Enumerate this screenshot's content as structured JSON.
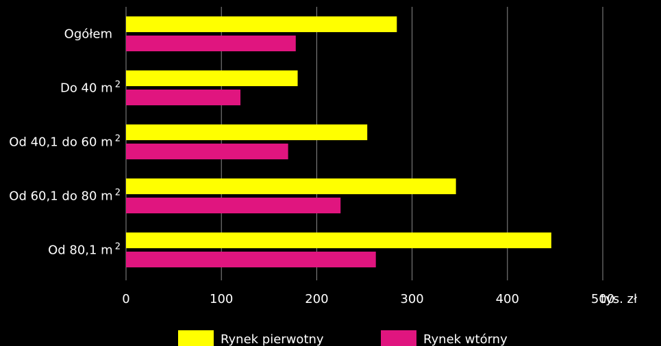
{
  "chart_data": {
    "type": "bar",
    "orientation": "horizontal",
    "categories": [
      {
        "label": "Ogółem",
        "sup": ""
      },
      {
        "label": "Do 40 m",
        "sup": "2"
      },
      {
        "label": "Od 40,1 do 60 m",
        "sup": "2"
      },
      {
        "label": "Od 60,1 do 80 m",
        "sup": "2"
      },
      {
        "label": "Od 80,1 m",
        "sup": "2"
      }
    ],
    "series": [
      {
        "name": "Rynek pierwotny",
        "color": "#ffff00",
        "values": [
          284,
          180,
          253,
          346,
          446
        ]
      },
      {
        "name": "Rynek wtórny",
        "color": "#e0157f",
        "values": [
          178,
          120,
          170,
          225,
          262
        ]
      }
    ],
    "xlim": [
      0,
      500
    ],
    "xticks": [
      "0",
      "100",
      "200",
      "300",
      "400",
      "500"
    ],
    "x_unit": "tys. zł",
    "grid": true,
    "legend_position": "bottom"
  }
}
